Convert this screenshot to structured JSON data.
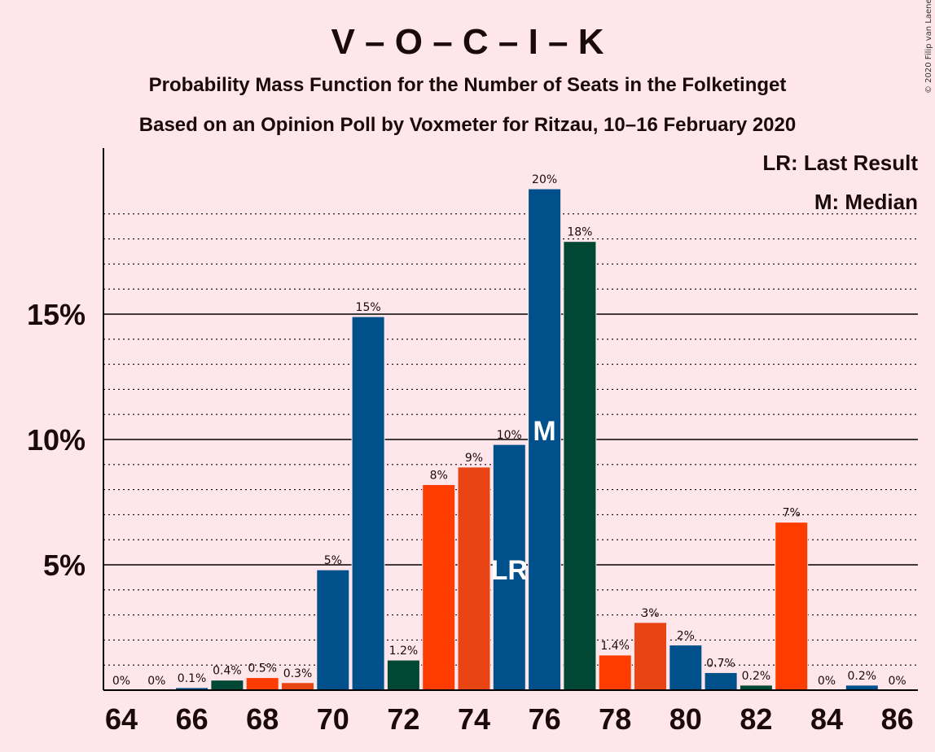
{
  "title": "V – O – C – I – K",
  "subtitle1": "Probability Mass Function for the Number of Seats in the Folketinget",
  "subtitle2": "Based on an Opinion Poll by Voxmeter for Ritzau, 10–16 February 2020",
  "copyright": "© 2020 Filip van Laenen",
  "legend": {
    "lr": "LR: Last Result",
    "m": "M: Median"
  },
  "colors": {
    "background": "#FFE6EA",
    "blue": "#00508C",
    "dark_green": "#004834",
    "orange": "#FF3C00",
    "dark_orange": "#E84414"
  },
  "chart_data": {
    "type": "bar",
    "x": [
      64,
      65,
      66,
      67,
      68,
      69,
      70,
      71,
      72,
      73,
      74,
      75,
      76,
      77,
      78,
      79,
      80,
      81,
      82,
      83,
      84,
      85,
      86
    ],
    "values": [
      0,
      0,
      0.1,
      0.4,
      0.5,
      0.3,
      4.8,
      14.9,
      1.2,
      8.2,
      8.9,
      9.8,
      20.0,
      17.9,
      1.4,
      2.7,
      1.8,
      0.7,
      0.2,
      6.7,
      0,
      0.2,
      0
    ],
    "labels": [
      "0%",
      "0%",
      "0.1%",
      "0.4%",
      "0.5%",
      "0.3%",
      "5%",
      "15%",
      "1.2%",
      "8%",
      "9%",
      "10%",
      "20%",
      "18%",
      "1.4%",
      "3%",
      "2%",
      "0.7%",
      "0.2%",
      "7%",
      "0%",
      "0.2%",
      "0%"
    ],
    "bar_colors": [
      "",
      "",
      "blue",
      "dark_green",
      "orange",
      "dark_orange",
      "blue",
      "blue",
      "dark_green",
      "orange",
      "dark_orange",
      "blue",
      "blue",
      "dark_green",
      "orange",
      "dark_orange",
      "blue",
      "blue",
      "dark_green",
      "orange",
      "",
      "blue",
      ""
    ],
    "x_ticks": [
      64,
      66,
      68,
      70,
      72,
      74,
      76,
      78,
      80,
      82,
      84,
      86
    ],
    "y_ticks": [
      5,
      10,
      15
    ],
    "y_tick_labels": [
      "5%",
      "10%",
      "15%"
    ],
    "ylim": [
      0,
      21.5
    ],
    "last_result_seat": 75,
    "median_seat": 76,
    "last_result_marker": "LR",
    "median_marker": "M"
  }
}
